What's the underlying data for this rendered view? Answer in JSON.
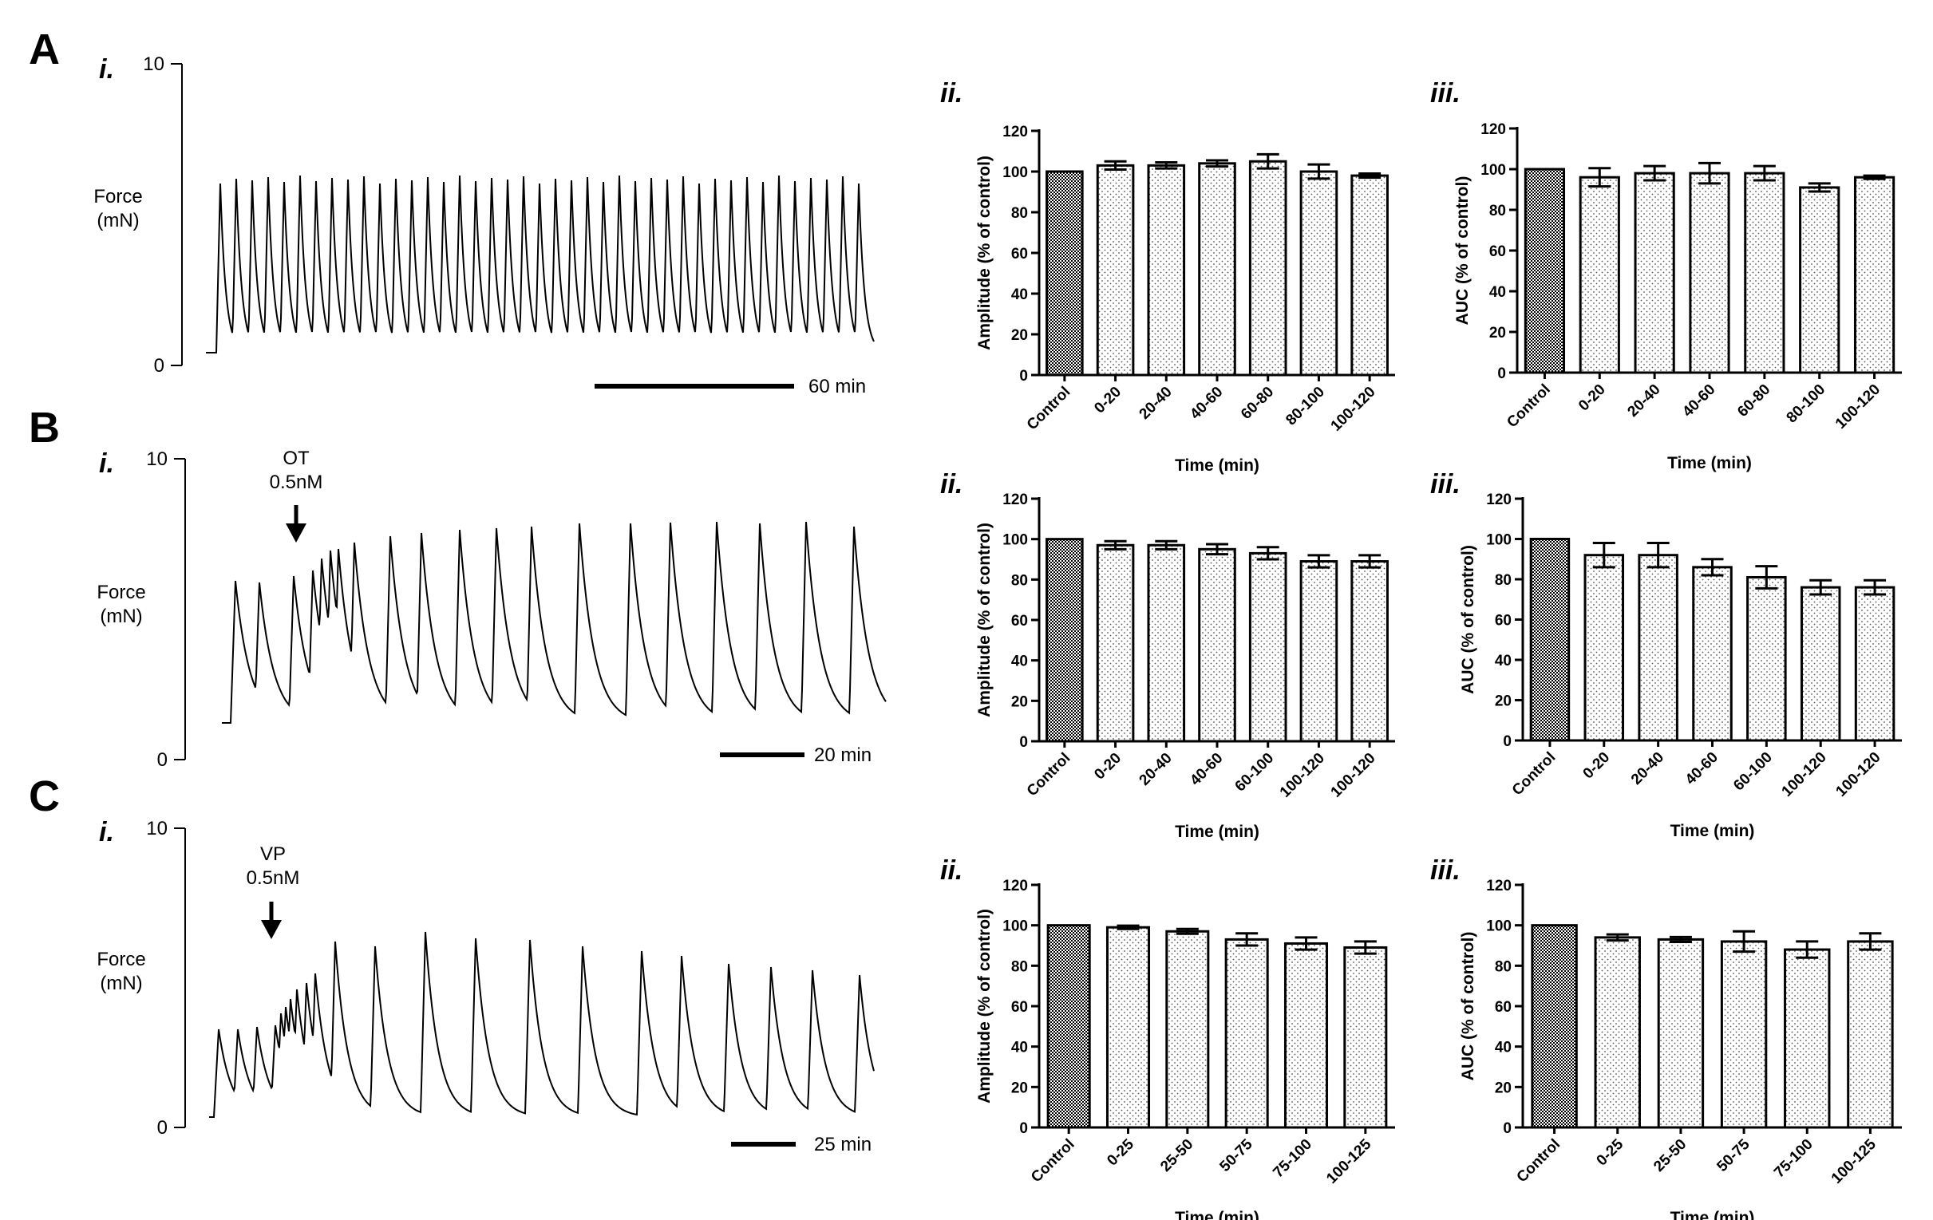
{
  "panels": [
    {
      "letter": "A",
      "trace": {
        "sublabel": "i.",
        "y_max": "10",
        "y_min": "0",
        "y_label_line1": "Force",
        "y_label_line2": "(mN)",
        "scale_bar": "60 min",
        "drug": "",
        "dose": ""
      },
      "charts": [
        {
          "sublabel": "ii.",
          "type": "bar",
          "ylabel": "Amplitude (% of control)",
          "xlabel": "Time (min)",
          "ylim": [
            0,
            120
          ],
          "yticks": [
            0,
            20,
            40,
            60,
            80,
            100,
            120
          ],
          "categories": [
            "Control",
            "0-20",
            "20-40",
            "40-60",
            "60-80",
            "80-100",
            "100-120"
          ],
          "values": [
            100,
            103,
            103,
            104,
            105,
            100,
            98
          ],
          "errors": [
            0,
            2,
            1.5,
            1.5,
            3.5,
            3.5,
            1
          ]
        },
        {
          "sublabel": "iii.",
          "type": "bar",
          "ylabel": "AUC (% of control)",
          "xlabel": "Time (min)",
          "ylim": [
            0,
            120
          ],
          "yticks": [
            0,
            20,
            40,
            60,
            80,
            100,
            120
          ],
          "categories": [
            "Control",
            "0-20",
            "20-40",
            "40-60",
            "60-80",
            "80-100",
            "100-120"
          ],
          "values": [
            100,
            96,
            98,
            98,
            98,
            91,
            96
          ],
          "errors": [
            0,
            4.5,
            3.5,
            5,
            3.5,
            2,
            0.8
          ]
        }
      ]
    },
    {
      "letter": "B",
      "trace": {
        "sublabel": "i.",
        "y_max": "10",
        "y_min": "0",
        "y_label_line1": "Force",
        "y_label_line2": "(mN)",
        "scale_bar": "20 min",
        "drug": "OT",
        "dose": "0.5nM"
      },
      "charts": [
        {
          "sublabel": "ii.",
          "type": "bar",
          "ylabel": "Amplitude (% of control)",
          "xlabel": "Time (min)",
          "ylim": [
            0,
            120
          ],
          "yticks": [
            0,
            20,
            40,
            60,
            80,
            100,
            120
          ],
          "categories": [
            "Control",
            "0-20",
            "20-40",
            "40-60",
            "60-100",
            "100-120",
            "100-120"
          ],
          "values": [
            100,
            97,
            97,
            95,
            93,
            89,
            89
          ],
          "errors": [
            0,
            2,
            2,
            2.5,
            3,
            3,
            3
          ]
        },
        {
          "sublabel": "iii.",
          "type": "bar",
          "ylabel": "AUC (% of control)",
          "xlabel": "Time (min)",
          "ylim": [
            0,
            120
          ],
          "yticks": [
            0,
            20,
            40,
            60,
            80,
            100,
            120
          ],
          "categories": [
            "Control",
            "0-20",
            "20-40",
            "40-60",
            "60-100",
            "100-120",
            "100-120"
          ],
          "values": [
            100,
            92,
            92,
            86,
            81,
            76,
            76
          ],
          "errors": [
            0,
            6,
            6,
            4,
            5.5,
            3.5,
            3.5
          ]
        }
      ]
    },
    {
      "letter": "C",
      "trace": {
        "sublabel": "i.",
        "y_max": "10",
        "y_min": "0",
        "y_label_line1": "Force",
        "y_label_line2": "(mN)",
        "scale_bar": "25 min",
        "drug": "VP",
        "dose": "0.5nM"
      },
      "charts": [
        {
          "sublabel": "ii.",
          "type": "bar",
          "ylabel": "Amplitude (% of control)",
          "xlabel": "Time (min)",
          "ylim": [
            0,
            120
          ],
          "yticks": [
            0,
            20,
            40,
            60,
            80,
            100,
            120
          ],
          "categories": [
            "Control",
            "0-25",
            "25-50",
            "50-75",
            "75-100",
            "100-125"
          ],
          "values": [
            100,
            99,
            97,
            93,
            91,
            89
          ],
          "errors": [
            0,
            0.8,
            1.2,
            3,
            3,
            3
          ]
        },
        {
          "sublabel": "iii.",
          "type": "bar",
          "ylabel": "AUC (% of control)",
          "xlabel": "Time (min)",
          "ylim": [
            0,
            120
          ],
          "yticks": [
            0,
            20,
            40,
            60,
            80,
            100,
            120
          ],
          "categories": [
            "Control",
            "0-25",
            "25-50",
            "50-75",
            "75-100",
            "100-125"
          ],
          "values": [
            100,
            94,
            93,
            92,
            88,
            92
          ],
          "errors": [
            0,
            1.5,
            1.2,
            5,
            4,
            4
          ]
        }
      ]
    }
  ],
  "chart_data": [
    {
      "panel": "A ii.",
      "type": "bar",
      "title": "",
      "xlabel": "Time (min)",
      "ylabel": "Amplitude (% of control)",
      "categories": [
        "Control",
        "0-20",
        "20-40",
        "40-60",
        "60-80",
        "80-100",
        "100-120"
      ],
      "values": [
        100,
        103,
        103,
        104,
        105,
        100,
        98
      ],
      "errors": [
        0,
        2,
        1.5,
        1.5,
        3.5,
        3.5,
        1
      ],
      "ylim": [
        0,
        120
      ]
    },
    {
      "panel": "A iii.",
      "type": "bar",
      "title": "",
      "xlabel": "Time (min)",
      "ylabel": "AUC (% of control)",
      "categories": [
        "Control",
        "0-20",
        "20-40",
        "40-60",
        "60-80",
        "80-100",
        "100-120"
      ],
      "values": [
        100,
        96,
        98,
        98,
        98,
        91,
        96
      ],
      "errors": [
        0,
        4.5,
        3.5,
        5,
        3.5,
        2,
        0.8
      ],
      "ylim": [
        0,
        120
      ]
    },
    {
      "panel": "B ii.",
      "type": "bar",
      "title": "",
      "xlabel": "Time (min)",
      "ylabel": "Amplitude (% of control)",
      "categories": [
        "Control",
        "0-20",
        "20-40",
        "40-60",
        "60-100",
        "100-120",
        "100-120"
      ],
      "values": [
        100,
        97,
        97,
        95,
        93,
        89,
        89
      ],
      "errors": [
        0,
        2,
        2,
        2.5,
        3,
        3,
        3
      ],
      "ylim": [
        0,
        120
      ]
    },
    {
      "panel": "B iii.",
      "type": "bar",
      "title": "",
      "xlabel": "Time (min)",
      "ylabel": "AUC (% of control)",
      "categories": [
        "Control",
        "0-20",
        "20-40",
        "40-60",
        "60-100",
        "100-120",
        "100-120"
      ],
      "values": [
        100,
        92,
        92,
        86,
        81,
        76,
        76
      ],
      "errors": [
        0,
        6,
        6,
        4,
        5.5,
        3.5,
        3.5
      ],
      "ylim": [
        0,
        120
      ]
    },
    {
      "panel": "C ii.",
      "type": "bar",
      "title": "",
      "xlabel": "Time (min)",
      "ylabel": "Amplitude (% of control)",
      "categories": [
        "Control",
        "0-25",
        "25-50",
        "50-75",
        "75-100",
        "100-125"
      ],
      "values": [
        100,
        99,
        97,
        93,
        91,
        89
      ],
      "errors": [
        0,
        0.8,
        1.2,
        3,
        3,
        3
      ],
      "ylim": [
        0,
        120
      ]
    },
    {
      "panel": "C iii.",
      "type": "bar",
      "title": "",
      "xlabel": "Time (min)",
      "ylabel": "AUC (% of control)",
      "categories": [
        "Control",
        "0-25",
        "25-50",
        "50-75",
        "75-100",
        "100-125"
      ],
      "values": [
        100,
        94,
        93,
        92,
        88,
        92
      ],
      "errors": [
        0,
        1.5,
        1.2,
        5,
        4,
        4
      ],
      "ylim": [
        0,
        120
      ]
    }
  ]
}
